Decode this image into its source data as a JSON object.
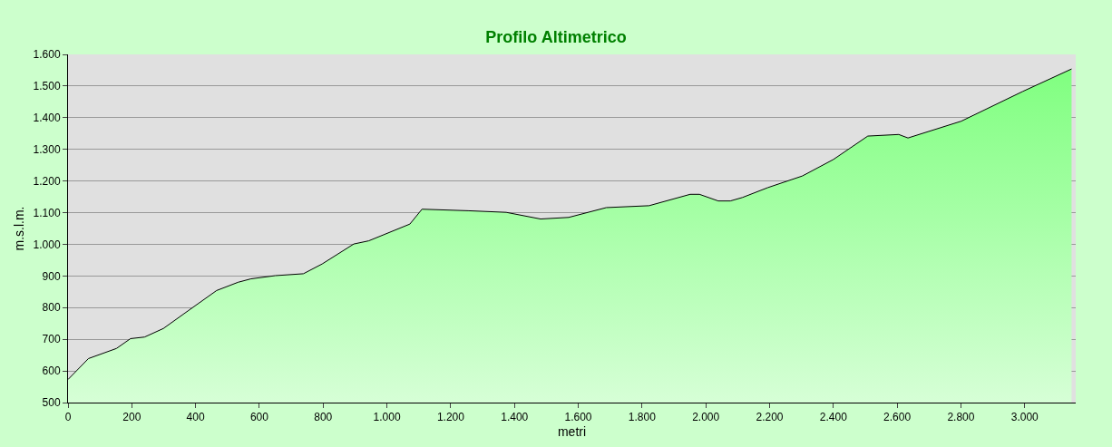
{
  "chart_data": {
    "type": "area",
    "title": "Profilo Altimetrico",
    "xlabel": "metri",
    "ylabel": "m.s.l.m.",
    "x": [
      0,
      64,
      152,
      196,
      240,
      299,
      378,
      466,
      533,
      574,
      650,
      738,
      797,
      896,
      943,
      1072,
      1110,
      1257,
      1374,
      1482,
      1570,
      1688,
      1822,
      1951,
      1980,
      2039,
      2077,
      2115,
      2194,
      2303,
      2400,
      2508,
      2605,
      2634,
      2801,
      2994,
      3147
    ],
    "series": [
      {
        "color": "#80ff80",
        "values": [
          573,
          639,
          671,
          702,
          707,
          734,
          791,
          854,
          880,
          891,
          901,
          907,
          938,
          1001,
          1011,
          1064,
          1111,
          1106,
          1101,
          1080,
          1085,
          1116,
          1122,
          1158,
          1158,
          1137,
          1137,
          1148,
          1179,
          1216,
          1268,
          1342,
          1347,
          1336,
          1389,
          1483,
          1554
        ]
      }
    ],
    "xlim": [
      0,
      3160
    ],
    "ylim": [
      500,
      1600
    ],
    "xticks": [
      0,
      200,
      400,
      600,
      800,
      {
        "value": 1000,
        "label": "1.000"
      },
      {
        "value": 1200,
        "label": "1.200"
      },
      {
        "value": 1400,
        "label": "1.400"
      },
      {
        "value": 1600,
        "label": "1.600"
      },
      {
        "value": 1800,
        "label": "1.800"
      },
      {
        "value": 2000,
        "label": "2.000"
      },
      {
        "value": 2200,
        "label": "2.200"
      },
      {
        "value": 2400,
        "label": "2.400"
      },
      {
        "value": 2600,
        "label": "2.600"
      },
      {
        "value": 2800,
        "label": "2.800"
      },
      {
        "value": 3000,
        "label": "3.000"
      }
    ],
    "yticks": [
      500,
      600,
      700,
      800,
      900,
      {
        "value": 1000,
        "label": "1.000"
      },
      {
        "value": 1100,
        "label": "1.100"
      },
      {
        "value": 1200,
        "label": "1.200"
      },
      {
        "value": 1300,
        "label": "1.300"
      },
      {
        "value": 1400,
        "label": "1.400"
      },
      {
        "value": 1500,
        "label": "1.500"
      },
      {
        "value": 1600,
        "label": "1.600"
      }
    ],
    "grid": "y"
  }
}
